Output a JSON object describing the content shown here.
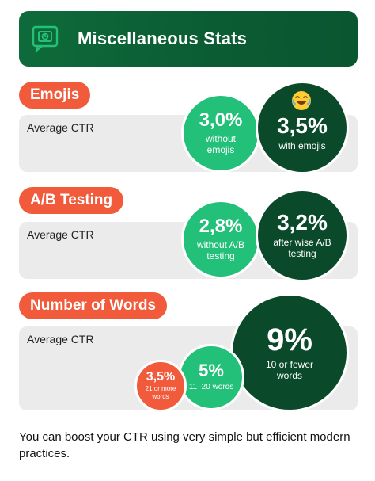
{
  "header": {
    "title": "Miscellaneous Stats",
    "icon": "monitor-chart-icon"
  },
  "sections": {
    "emojis": {
      "pill": "Emojis",
      "label": "Average CTR",
      "left": {
        "value": "3,0%",
        "sub": "without emojis"
      },
      "right": {
        "value": "3,5%",
        "sub": "with emojis",
        "icon": "laughing-emoji-icon"
      }
    },
    "ab": {
      "pill": "A/B Testing",
      "label": "Average CTR",
      "left": {
        "value": "2,8%",
        "sub": "without A/B testing"
      },
      "right": {
        "value": "3,2%",
        "sub": "after wise A/B testing"
      }
    },
    "words": {
      "pill": "Number of Words",
      "label": "Average CTR",
      "small": {
        "value": "3,5%",
        "sub": "21 or more words"
      },
      "mid": {
        "value": "5%",
        "sub": "11–20 words"
      },
      "big": {
        "value": "9%",
        "sub": "10 or fewer words"
      }
    }
  },
  "footer": {
    "text": "You can boost your CTR using very simple but efficient modern practices."
  },
  "colors": {
    "header": "#0b5b33",
    "pill": "#f15a3a",
    "light_green": "#23c07a",
    "dark_green": "#0a4a2a",
    "bar": "#ebebeb"
  }
}
